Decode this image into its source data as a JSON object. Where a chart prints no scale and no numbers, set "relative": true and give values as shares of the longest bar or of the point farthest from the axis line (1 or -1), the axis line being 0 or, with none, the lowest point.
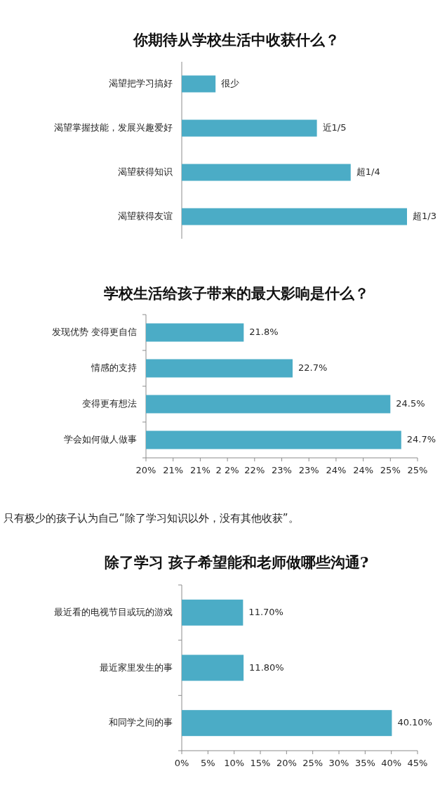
{
  "chart_data": [
    {
      "type": "bar",
      "orientation": "horizontal",
      "relative": true,
      "title": "你期待从学校生活中收获什么？",
      "categories": [
        "渴望把学习搞好",
        "渴望掌握技能，发展兴趣爱好",
        "渴望获得知识",
        "渴望获得友谊"
      ],
      "values": [
        0.15,
        0.6,
        0.75,
        1
      ],
      "color": "#4bacc6",
      "annotations": [
        {
          "text": "很少",
          "x": 0.15,
          "y": "渴望把学习搞好"
        },
        {
          "text": "近1/5",
          "x": 0.6,
          "y": "渴望掌握技能，发展兴趣爱好"
        },
        {
          "text": "超1/4",
          "x": 0.75,
          "y": "渴望获得知识"
        },
        {
          "text": "超1/3",
          "x": 1,
          "y": "渴望获得友谊"
        }
      ]
    },
    {
      "type": "bar",
      "orientation": "horizontal",
      "title": "学校生活给孩子带来的最大影响是什么？",
      "categories": [
        "发现优势 变得更自信",
        "情感的支持",
        "变得更有想法",
        "学会如何做人做事"
      ],
      "values": [
        21.8,
        22.7,
        24.5,
        24.7
      ],
      "value_labels": [
        "21.8%",
        "22.7%",
        "24.5%",
        "24.7%"
      ],
      "color": "#4bacc6",
      "xlim": [
        20,
        25
      ],
      "xticks": [
        {
          "value": 20,
          "label": "20%"
        },
        {
          "value": 20.5,
          "label": "21%"
        },
        {
          "value": 21,
          "label": "21%"
        },
        {
          "value": 21.5,
          "label": "2 2%"
        },
        {
          "value": 22,
          "label": "22%"
        },
        {
          "value": 22.5,
          "label": "23%"
        },
        {
          "value": 23,
          "label": "23%"
        },
        {
          "value": 23.5,
          "label": "24%"
        },
        {
          "value": 24,
          "label": "24%"
        },
        {
          "value": 24.5,
          "label": "25%"
        },
        {
          "value": 25,
          "label": "25%"
        }
      ]
    },
    {
      "type": "other",
      "annotations": [
        "只有极少的孩子认为自己“除了学习知识以外，没有其他收获”。"
      ]
    },
    {
      "type": "bar",
      "orientation": "horizontal",
      "title": "除了学习 孩子希望能和老师做哪些沟通?",
      "categories": [
        "最近看的电视节目或玩的游戏",
        "最近家里发生的事",
        "和同学之间的事"
      ],
      "values": [
        11.7,
        11.8,
        40.1
      ],
      "value_labels": [
        "11.70%",
        "11.80%",
        "40.10%"
      ],
      "color": "#4bacc6",
      "xlim": [
        0,
        45
      ],
      "xticks": [
        {
          "value": 0,
          "label": "0%"
        },
        {
          "value": 5,
          "label": "5%"
        },
        {
          "value": 10,
          "label": "10%"
        },
        {
          "value": 15,
          "label": "15%"
        },
        {
          "value": 20,
          "label": "20%"
        },
        {
          "value": 25,
          "label": "25%"
        },
        {
          "value": 30,
          "label": "30%"
        },
        {
          "value": 35,
          "label": "35%"
        },
        {
          "value": 40,
          "label": "40%"
        },
        {
          "value": 45,
          "label": "45%"
        }
      ]
    }
  ]
}
